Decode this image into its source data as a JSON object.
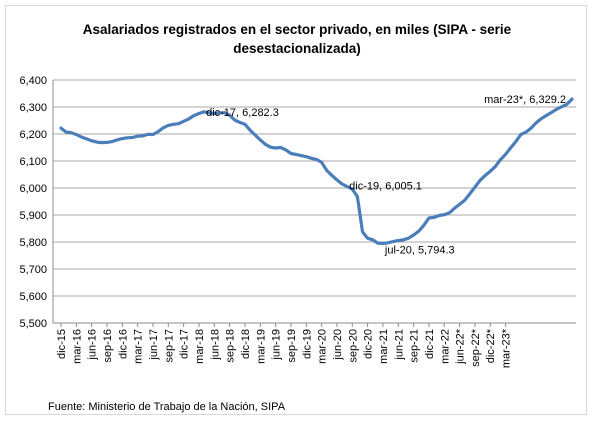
{
  "chart_data": {
    "type": "line",
    "title_lines": [
      "Asalariados registrados en el sector privado, en miles (SIPA - serie",
      "desestacionalizada)"
    ],
    "source": "Fuente: Ministerio de Trabajo de la Nación, SIPA",
    "ylim": [
      5500,
      6400
    ],
    "yticks": [
      5500,
      5600,
      5700,
      5800,
      5900,
      6000,
      6100,
      6200,
      6300,
      6400
    ],
    "ytick_labels": [
      "5,500",
      "5,600",
      "5,700",
      "5,800",
      "5,900",
      "6,000",
      "6,100",
      "6,200",
      "6,300",
      "6,400"
    ],
    "grid": true,
    "color": "#4a7ebb",
    "xtick_labels": [
      "dic-15",
      "mar-16",
      "jun-16",
      "sep-16",
      "dic-16",
      "mar-17",
      "jun-17",
      "sep-17",
      "dic-17",
      "mar-18",
      "jun-18",
      "sep-18",
      "dic-18",
      "mar-19",
      "jun-19",
      "sep-19",
      "dic-19",
      "mar-20",
      "jun-20",
      "sep-20",
      "dic-20",
      "mar-21",
      "jun-21",
      "sep-21",
      "dic-21",
      "mar-22",
      "jun-22*",
      "sep-22*",
      "dic-22*",
      "mar-23*"
    ],
    "series": [
      {
        "values": [
          6222,
          6207,
          6205,
          6198,
          6189,
          6182,
          6175,
          6170,
          6168,
          6169,
          6172,
          6178,
          6183,
          6186,
          6187,
          6192,
          6193,
          6199,
          6198,
          6209,
          6223,
          6232,
          6236,
          6238,
          6247,
          6256,
          6268,
          6276,
          6282.3,
          6278,
          6276,
          6278,
          6279,
          6270,
          6252,
          6243,
          6236,
          6214,
          6196,
          6178,
          6162,
          6151,
          6148,
          6150,
          6141,
          6128,
          6124,
          6120,
          6116,
          6110,
          6106,
          6095,
          6065,
          6047,
          6030,
          6015,
          6005.1,
          5996,
          5968,
          5838,
          5814,
          5808,
          5796,
          5794.3,
          5797,
          5802,
          5805,
          5808,
          5814,
          5826,
          5840,
          5862,
          5889,
          5891,
          5898,
          5901,
          5908,
          5925,
          5940,
          5955,
          5978,
          6003,
          6028,
          6046,
          6062,
          6080,
          6105,
          6125,
          6149,
          6172,
          6198,
          6207,
          6222,
          6242,
          6257,
          6269,
          6280,
          6292,
          6301,
          6310,
          6329.2
        ]
      }
    ],
    "annotations": [
      {
        "label": "dic-17, 6,282.3",
        "x": "dic-17",
        "y": 6282.3
      },
      {
        "label": "dic-19, 6,005.1",
        "x": "dic-19",
        "y": 6005.1
      },
      {
        "label": "jul-20, 5,794.3",
        "x": "jul-20",
        "y": 5794.3
      },
      {
        "label": "mar-23*, 6,329.2",
        "x": "mar-23*",
        "y": 6329.2
      }
    ]
  }
}
